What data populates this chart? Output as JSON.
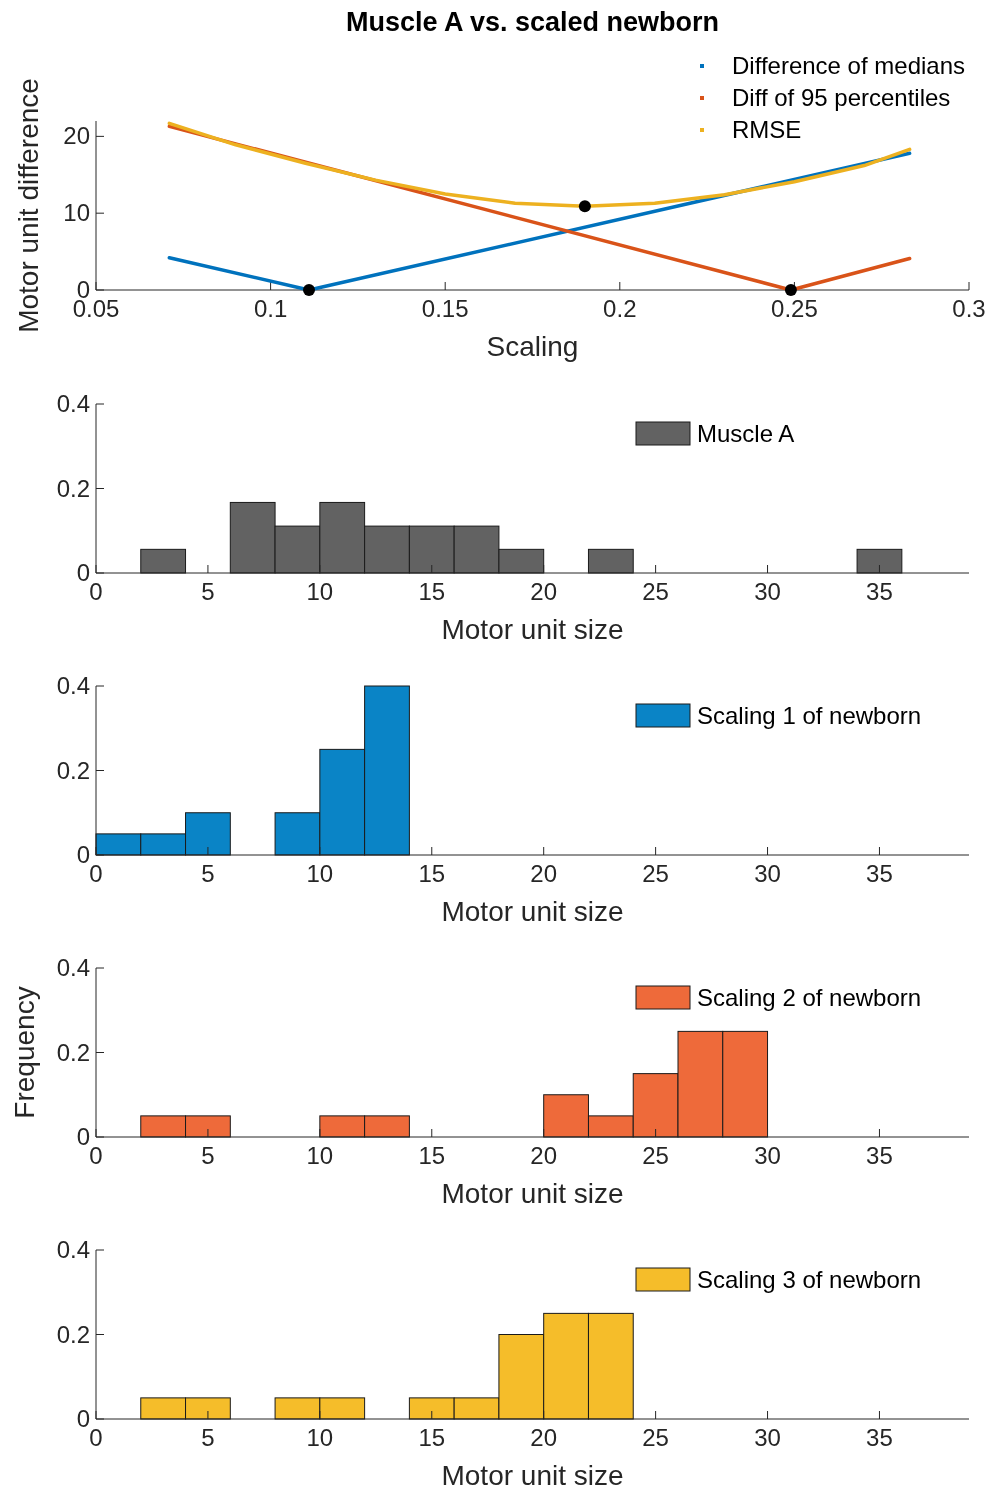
{
  "chart_data": [
    {
      "type": "line",
      "title": "Muscle A vs. scaled newborn",
      "xlabel": "Scaling",
      "ylabel": "Motor unit difference",
      "xlim": [
        0.05,
        0.3
      ],
      "xticks": [
        0.05,
        0.1,
        0.15,
        0.2,
        0.25,
        0.3
      ],
      "ylim": [
        0,
        22
      ],
      "yticks": [
        0,
        10,
        20
      ],
      "legend": "top right",
      "series": [
        {
          "name": "Difference of medians",
          "color": "#0072bd",
          "x": [
            0.071,
            0.111,
            0.283
          ],
          "values": [
            4.2,
            0,
            17.8
          ]
        },
        {
          "name": "Diff of 95 percentiles",
          "color": "#d95319",
          "x": [
            0.071,
            0.249,
            0.283
          ],
          "values": [
            21.3,
            0,
            4.1
          ]
        },
        {
          "name": "RMSE",
          "color": "#edb120",
          "x": [
            0.071,
            0.09,
            0.11,
            0.13,
            0.15,
            0.17,
            0.19,
            0.21,
            0.23,
            0.25,
            0.27,
            0.283
          ],
          "values": [
            21.7,
            18.9,
            16.5,
            14.3,
            12.5,
            11.3,
            10.9,
            11.3,
            12.4,
            14.1,
            16.2,
            18.3
          ]
        },
        {
          "type": "scatter",
          "marker": "circle",
          "color": "#000000",
          "x": [
            0.111,
            0.19,
            0.249
          ],
          "values": [
            0,
            10.9,
            0
          ]
        }
      ]
    },
    {
      "type": "histogram",
      "xlabel": "Motor unit size",
      "xlim": [
        0,
        39
      ],
      "xticks": [
        0,
        5,
        10,
        15,
        20,
        25,
        30,
        35
      ],
      "ylim": [
        0,
        0.4
      ],
      "yticks": [
        0,
        0.2,
        0.4
      ],
      "legend": "top right",
      "bins": [
        0,
        2,
        4,
        6,
        8,
        10,
        12,
        14,
        16,
        18,
        20,
        22,
        24,
        26,
        28,
        30,
        32,
        34,
        36
      ],
      "series": [
        {
          "name": "Muscle A",
          "color": "#626262",
          "values": [
            0,
            0.056,
            0,
            0.167,
            0.111,
            0.167,
            0.111,
            0.111,
            0.111,
            0.056,
            0,
            0.056,
            0,
            0,
            0,
            0,
            0,
            0.056
          ]
        }
      ]
    },
    {
      "type": "histogram",
      "xlabel": "Motor unit size",
      "xlim": [
        0,
        39
      ],
      "xticks": [
        0,
        5,
        10,
        15,
        20,
        25,
        30,
        35
      ],
      "ylim": [
        0,
        0.4
      ],
      "yticks": [
        0,
        0.2,
        0.4
      ],
      "legend": "top right",
      "bins": [
        0,
        2,
        4,
        6,
        8,
        10,
        12,
        14,
        16,
        18,
        20,
        22,
        24,
        26,
        28,
        30,
        32,
        34,
        36
      ],
      "series": [
        {
          "name": "Scaling 1 of newborn",
          "color": "#0a84c6",
          "values": [
            0.05,
            0.05,
            0.1,
            0,
            0.1,
            0.25,
            0.4,
            0,
            0,
            0,
            0,
            0,
            0,
            0,
            0,
            0,
            0,
            0
          ]
        }
      ]
    },
    {
      "type": "histogram",
      "xlabel": "Motor unit size",
      "ylabel": "Frequency",
      "xlim": [
        0,
        39
      ],
      "xticks": [
        0,
        5,
        10,
        15,
        20,
        25,
        30,
        35
      ],
      "ylim": [
        0,
        0.4
      ],
      "yticks": [
        0,
        0.2,
        0.4
      ],
      "legend": "top right",
      "bins": [
        0,
        2,
        4,
        6,
        8,
        10,
        12,
        14,
        16,
        18,
        20,
        22,
        24,
        26,
        28,
        30,
        32,
        34,
        36
      ],
      "series": [
        {
          "name": "Scaling 2 of newborn",
          "color": "#ee6a3a",
          "values": [
            0,
            0.05,
            0.05,
            0,
            0,
            0.05,
            0.05,
            0,
            0,
            0,
            0.1,
            0.05,
            0.15,
            0.25,
            0.25,
            0,
            0,
            0
          ]
        }
      ]
    },
    {
      "type": "histogram",
      "xlabel": "Motor unit size",
      "xlim": [
        0,
        39
      ],
      "xticks": [
        0,
        5,
        10,
        15,
        20,
        25,
        30,
        35
      ],
      "ylim": [
        0,
        0.4
      ],
      "yticks": [
        0,
        0.2,
        0.4
      ],
      "legend": "top right",
      "bins": [
        0,
        2,
        4,
        6,
        8,
        10,
        12,
        14,
        16,
        18,
        20,
        22,
        24,
        26,
        28,
        30,
        32,
        34,
        36
      ],
      "series": [
        {
          "name": "Scaling 3 of newborn",
          "color": "#f5bd2a",
          "values": [
            0,
            0.05,
            0.05,
            0,
            0.05,
            0.05,
            0,
            0.05,
            0.05,
            0.2,
            0.25,
            0.25,
            0,
            0,
            0,
            0,
            0,
            0
          ]
        }
      ]
    }
  ]
}
